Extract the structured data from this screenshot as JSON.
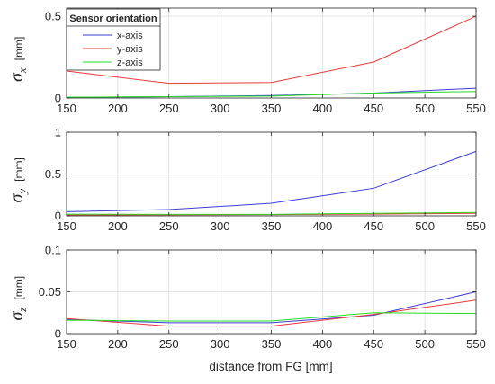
{
  "chart_data": [
    {
      "type": "line",
      "ylabel_symbol": "σ",
      "ylabel_subscript": "x",
      "ylabel_unit": "[mm]",
      "xlabel": "",
      "x": [
        150,
        250,
        350,
        450,
        550
      ],
      "xlim": [
        150,
        550
      ],
      "ylim": [
        0,
        0.55
      ],
      "xticks": [
        150,
        200,
        250,
        300,
        350,
        400,
        450,
        500,
        550
      ],
      "xtick_labels": [
        "150",
        "200",
        "250",
        "300",
        "350",
        "400",
        "450",
        "500",
        "550"
      ],
      "yticks": [
        0,
        0.5
      ],
      "ytick_labels": [
        "0",
        "0.5"
      ],
      "grid": true,
      "legend": {
        "title": "Sensor orientation",
        "placement": "top-left",
        "entries": [
          "x-axis",
          "y-axis",
          "z-axis"
        ]
      },
      "series": [
        {
          "name": "x-axis",
          "color": "#3b3bd6",
          "values": [
            0.003,
            0.008,
            0.015,
            0.03,
            0.06
          ]
        },
        {
          "name": "y-axis",
          "color": "#e83a3a",
          "values": [
            0.165,
            0.09,
            0.095,
            0.22,
            0.5
          ]
        },
        {
          "name": "z-axis",
          "color": "#22dd22",
          "values": [
            0.005,
            0.008,
            0.012,
            0.03,
            0.04
          ]
        }
      ]
    },
    {
      "type": "line",
      "ylabel_symbol": "σ",
      "ylabel_subscript": "y",
      "ylabel_unit": "[mm]",
      "xlabel": "",
      "x": [
        150,
        250,
        350,
        450,
        550
      ],
      "xlim": [
        150,
        550
      ],
      "ylim": [
        0,
        1
      ],
      "xticks": [
        150,
        200,
        250,
        300,
        350,
        400,
        450,
        500,
        550
      ],
      "xtick_labels": [
        "150",
        "200",
        "250",
        "300",
        "350",
        "400",
        "450",
        "500",
        "550"
      ],
      "yticks": [
        0,
        0.5,
        1
      ],
      "ytick_labels": [
        "0",
        "0.5",
        "1"
      ],
      "grid": true,
      "series": [
        {
          "name": "x-axis",
          "color": "#3b3bd6",
          "values": [
            0.05,
            0.075,
            0.15,
            0.33,
            0.77
          ]
        },
        {
          "name": "y-axis",
          "color": "#e83a3a",
          "values": [
            0.01,
            0.012,
            0.015,
            0.02,
            0.03
          ]
        },
        {
          "name": "z-axis",
          "color": "#22dd22",
          "values": [
            0.02,
            0.018,
            0.018,
            0.03,
            0.04
          ]
        }
      ]
    },
    {
      "type": "line",
      "ylabel_symbol": "σ",
      "ylabel_subscript": "z",
      "ylabel_unit": "[mm]",
      "xlabel": "distance from FG [mm]",
      "x": [
        150,
        250,
        350,
        450,
        550
      ],
      "xlim": [
        150,
        550
      ],
      "ylim": [
        0,
        0.1
      ],
      "xticks": [
        150,
        200,
        250,
        300,
        350,
        400,
        450,
        500,
        550
      ],
      "xtick_labels": [
        "150",
        "200",
        "250",
        "300",
        "350",
        "400",
        "450",
        "500",
        "550"
      ],
      "yticks": [
        0,
        0.05,
        0.1
      ],
      "ytick_labels": [
        "0",
        "0.05",
        "0.1"
      ],
      "grid": true,
      "series": [
        {
          "name": "x-axis",
          "color": "#3b3bd6",
          "values": [
            0.017,
            0.013,
            0.013,
            0.022,
            0.05
          ]
        },
        {
          "name": "y-axis",
          "color": "#e83a3a",
          "values": [
            0.018,
            0.009,
            0.009,
            0.023,
            0.04
          ]
        },
        {
          "name": "z-axis",
          "color": "#22dd22",
          "values": [
            0.016,
            0.015,
            0.015,
            0.025,
            0.024
          ]
        }
      ]
    }
  ]
}
